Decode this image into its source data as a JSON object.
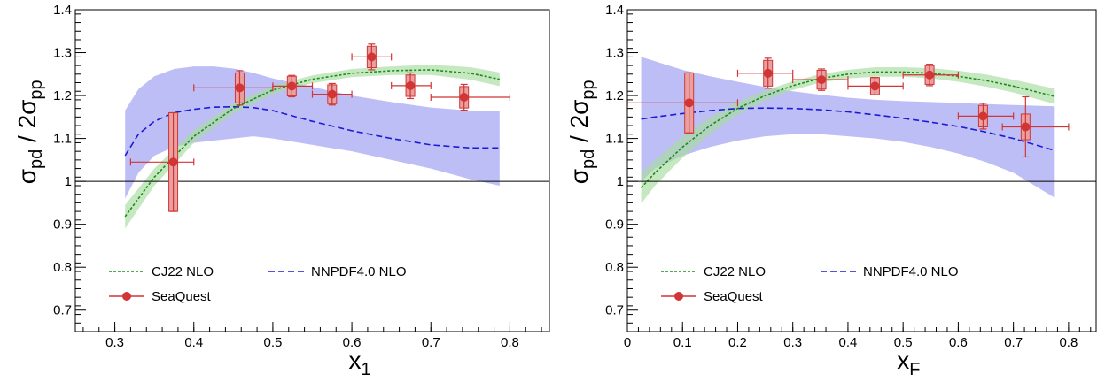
{
  "chart_data": [
    {
      "type": "scatter",
      "xlabel": "x",
      "xlabel_sub": "1",
      "ylabel": "σ",
      "ylabel_sub1": "pd",
      "ylabel_mid": " / 2σ",
      "ylabel_sub2": "pp",
      "xlim": [
        0.25,
        0.85
      ],
      "ylim": [
        0.65,
        1.4
      ],
      "xticks": [
        "0.3",
        "0.4",
        "0.5",
        "0.6",
        "0.7",
        "0.8"
      ],
      "yticks": [
        "0.7",
        "0.8",
        "0.9",
        "1",
        "1.1",
        "1.2",
        "1.3",
        "1.4"
      ],
      "reference_line": 1.0,
      "legend": {
        "cj22": "CJ22 NLO",
        "nnpdf": "NNPDF4.0 NLO",
        "seaquest": "SeaQuest"
      },
      "colors": {
        "cj22_line": "#1a8c1a",
        "cj22_band": "#a8dca0",
        "nnpdf_line": "#1a1ad9",
        "nnpdf_band": "#b3b3f5",
        "seaquest": "#d13535",
        "seaquest_box": "#e8a0a0"
      },
      "series": [
        {
          "name": "CJ22 NLO",
          "x": [
            0.313,
            0.35,
            0.4,
            0.45,
            0.5,
            0.55,
            0.6,
            0.65,
            0.7,
            0.75,
            0.787
          ],
          "values": [
            0.918,
            1.01,
            1.105,
            1.17,
            1.213,
            1.238,
            1.252,
            1.258,
            1.26,
            1.252,
            1.238
          ],
          "band_lo": [
            0.89,
            0.99,
            1.09,
            1.158,
            1.203,
            1.229,
            1.243,
            1.248,
            1.248,
            1.237,
            1.222
          ],
          "band_hi": [
            0.945,
            1.03,
            1.12,
            1.182,
            1.223,
            1.247,
            1.262,
            1.268,
            1.272,
            1.266,
            1.254
          ]
        },
        {
          "name": "NNPDF4.0 NLO",
          "x": [
            0.313,
            0.33,
            0.35,
            0.375,
            0.4,
            0.425,
            0.45,
            0.475,
            0.5,
            0.55,
            0.6,
            0.65,
            0.7,
            0.75,
            0.787
          ],
          "values": [
            1.06,
            1.11,
            1.14,
            1.16,
            1.168,
            1.173,
            1.174,
            1.172,
            1.165,
            1.14,
            1.118,
            1.1,
            1.085,
            1.078,
            1.078
          ],
          "band_lo": [
            0.96,
            1.02,
            1.06,
            1.08,
            1.09,
            1.095,
            1.1,
            1.105,
            1.1,
            1.085,
            1.07,
            1.05,
            1.03,
            1.005,
            0.99
          ],
          "band_hi": [
            1.165,
            1.215,
            1.245,
            1.262,
            1.268,
            1.268,
            1.263,
            1.253,
            1.24,
            1.22,
            1.2,
            1.185,
            1.172,
            1.165,
            1.165
          ]
        },
        {
          "name": "SeaQuest",
          "points": [
            {
              "x": 0.374,
              "y": 1.045,
              "xerr_lo": 0.054,
              "xerr_hi": 0.026,
              "stat": 0.115,
              "sys": 0.115
            },
            {
              "x": 0.458,
              "y": 1.218,
              "xerr_lo": 0.058,
              "xerr_hi": 0.042,
              "stat": 0.04,
              "sys": 0.035
            },
            {
              "x": 0.524,
              "y": 1.222,
              "xerr_lo": 0.024,
              "xerr_hi": 0.026,
              "stat": 0.025,
              "sys": 0.023
            },
            {
              "x": 0.575,
              "y": 1.203,
              "xerr_lo": 0.025,
              "xerr_hi": 0.025,
              "stat": 0.025,
              "sys": 0.022
            },
            {
              "x": 0.625,
              "y": 1.29,
              "xerr_lo": 0.025,
              "xerr_hi": 0.025,
              "stat": 0.03,
              "sys": 0.025
            },
            {
              "x": 0.674,
              "y": 1.223,
              "xerr_lo": 0.024,
              "xerr_hi": 0.026,
              "stat": 0.03,
              "sys": 0.025
            },
            {
              "x": 0.742,
              "y": 1.196,
              "xerr_lo": 0.042,
              "xerr_hi": 0.058,
              "stat": 0.03,
              "sys": 0.025
            }
          ]
        }
      ]
    },
    {
      "type": "scatter",
      "xlabel": "x",
      "xlabel_sub": "F",
      "ylabel": "σ",
      "ylabel_sub1": "pd",
      "ylabel_mid": " / 2σ",
      "ylabel_sub2": "pp",
      "xlim": [
        0,
        0.85
      ],
      "ylim": [
        0.65,
        1.4
      ],
      "xticks": [
        "0",
        "0.1",
        "0.2",
        "0.3",
        "0.4",
        "0.5",
        "0.6",
        "0.7",
        "0.8"
      ],
      "yticks": [
        "0.7",
        "0.8",
        "0.9",
        "1",
        "1.1",
        "1.2",
        "1.3",
        "1.4"
      ],
      "reference_line": 1.0,
      "legend": {
        "cj22": "CJ22 NLO",
        "nnpdf": "NNPDF4.0 NLO",
        "seaquest": "SeaQuest"
      },
      "colors": {
        "cj22_line": "#1a8c1a",
        "cj22_band": "#a8dca0",
        "nnpdf_line": "#1a1ad9",
        "nnpdf_band": "#b3b3f5",
        "seaquest": "#d13535",
        "seaquest_box": "#e8a0a0"
      },
      "series": [
        {
          "name": "CJ22 NLO",
          "x": [
            0.025,
            0.05,
            0.1,
            0.15,
            0.2,
            0.25,
            0.3,
            0.35,
            0.4,
            0.45,
            0.5,
            0.55,
            0.6,
            0.65,
            0.7,
            0.775
          ],
          "values": [
            0.985,
            1.02,
            1.08,
            1.13,
            1.17,
            1.2,
            1.223,
            1.24,
            1.25,
            1.255,
            1.255,
            1.252,
            1.245,
            1.235,
            1.222,
            1.198
          ],
          "band_lo": [
            0.948,
            0.99,
            1.055,
            1.11,
            1.155,
            1.188,
            1.213,
            1.23,
            1.24,
            1.244,
            1.244,
            1.24,
            1.232,
            1.221,
            1.207,
            1.18
          ],
          "band_hi": [
            1.02,
            1.05,
            1.105,
            1.15,
            1.186,
            1.212,
            1.233,
            1.25,
            1.26,
            1.266,
            1.266,
            1.264,
            1.258,
            1.249,
            1.237,
            1.216
          ]
        },
        {
          "name": "NNPDF4.0 NLO",
          "x": [
            0.025,
            0.05,
            0.1,
            0.15,
            0.2,
            0.25,
            0.3,
            0.35,
            0.4,
            0.45,
            0.5,
            0.55,
            0.6,
            0.65,
            0.7,
            0.775
          ],
          "values": [
            1.145,
            1.15,
            1.158,
            1.165,
            1.17,
            1.171,
            1.17,
            1.167,
            1.162,
            1.155,
            1.147,
            1.138,
            1.128,
            1.115,
            1.1,
            1.072
          ],
          "band_lo": [
            1.0,
            1.03,
            1.06,
            1.08,
            1.095,
            1.105,
            1.11,
            1.11,
            1.105,
            1.1,
            1.092,
            1.08,
            1.065,
            1.045,
            1.02,
            0.962
          ],
          "band_hi": [
            1.29,
            1.28,
            1.26,
            1.245,
            1.232,
            1.22,
            1.21,
            1.202,
            1.195,
            1.19,
            1.187,
            1.185,
            1.183,
            1.18,
            1.178,
            1.175
          ]
        },
        {
          "name": "SeaQuest",
          "points": [
            {
              "x": 0.112,
              "y": 1.183,
              "xerr_lo": 0.112,
              "xerr_hi": 0.088,
              "stat": 0.07,
              "sys": 0.07
            },
            {
              "x": 0.255,
              "y": 1.252,
              "xerr_lo": 0.055,
              "xerr_hi": 0.045,
              "stat": 0.035,
              "sys": 0.03
            },
            {
              "x": 0.352,
              "y": 1.237,
              "xerr_lo": 0.052,
              "xerr_hi": 0.048,
              "stat": 0.025,
              "sys": 0.022
            },
            {
              "x": 0.449,
              "y": 1.222,
              "xerr_lo": 0.049,
              "xerr_hi": 0.051,
              "stat": 0.02,
              "sys": 0.02
            },
            {
              "x": 0.548,
              "y": 1.248,
              "xerr_lo": 0.048,
              "xerr_hi": 0.052,
              "stat": 0.025,
              "sys": 0.022
            },
            {
              "x": 0.645,
              "y": 1.152,
              "xerr_lo": 0.045,
              "xerr_hi": 0.055,
              "stat": 0.03,
              "sys": 0.025
            },
            {
              "x": 0.722,
              "y": 1.127,
              "xerr_lo": 0.042,
              "xerr_hi": 0.078,
              "stat": 0.07,
              "sys": 0.03
            }
          ]
        }
      ]
    }
  ]
}
